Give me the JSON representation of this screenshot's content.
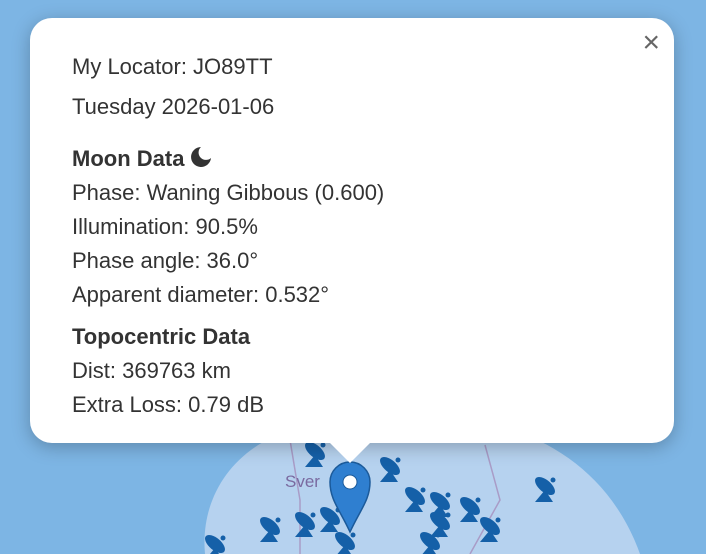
{
  "popup": {
    "close_label": "×",
    "locator": "My Locator: JO89TT",
    "date": "Tuesday 2026-01-06",
    "moon_heading": "Moon Data",
    "moon_icon": "moon-waning-gibbous-icon",
    "phase": "Phase: Waning Gibbous (0.600)",
    "illumination": "Illumination: 90.5%",
    "phase_angle": "Phase angle: 36.0°",
    "apparent_diameter": "Apparent diameter: 0.532°",
    "topo_heading": "Topocentric Data",
    "dist": "Dist: 369763 km",
    "extra_loss": "Extra Loss: 0.79 dB"
  },
  "map": {
    "country_label": "Sver",
    "marker_icon": "map-pin-icon",
    "station_icon": "satellite-dish-icon",
    "colors": {
      "sea": "#7db5e4",
      "land": "#b6d2ef",
      "marker": "#2f7fd0",
      "station": "#1560a8"
    }
  }
}
